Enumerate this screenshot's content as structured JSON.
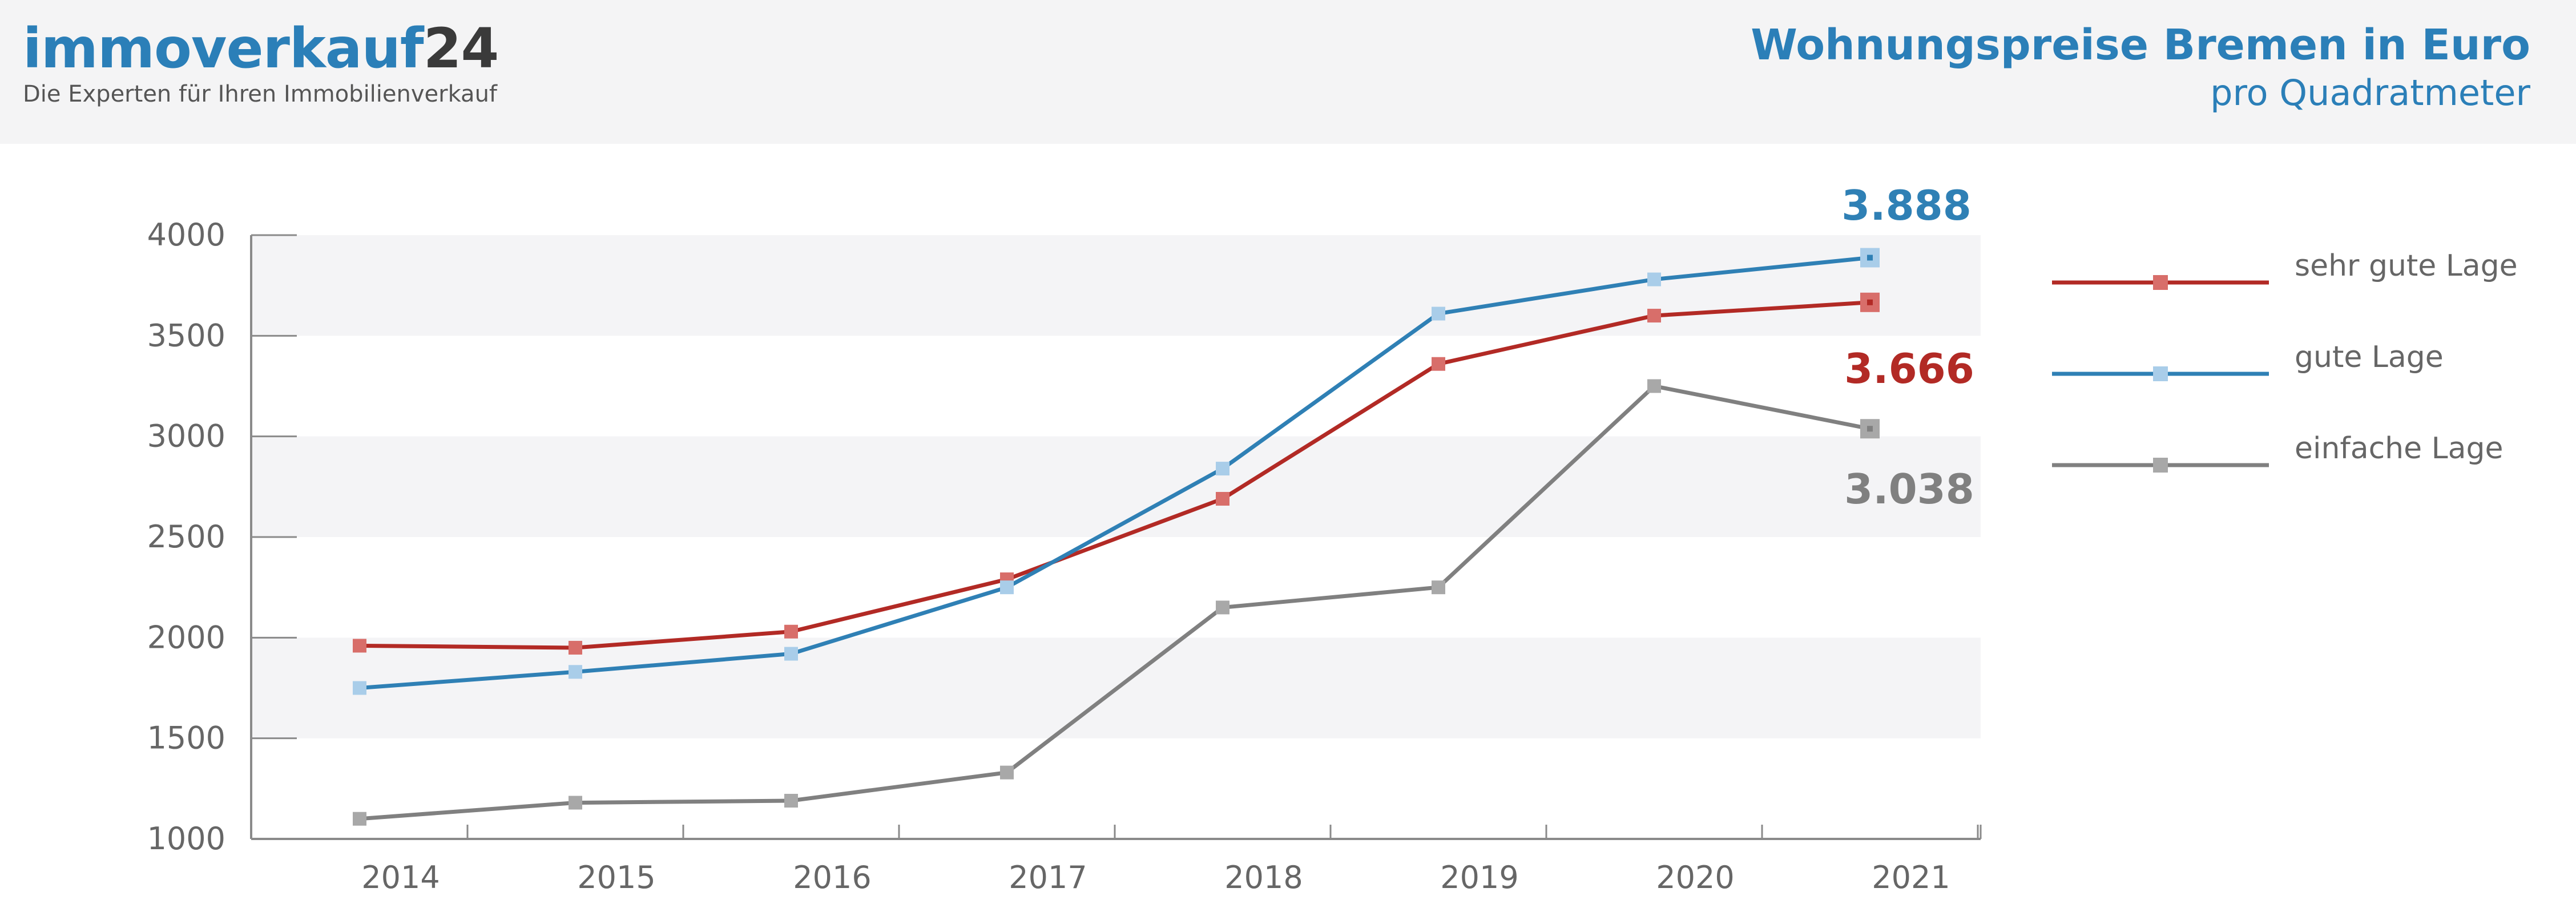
{
  "header": {
    "logo_main": "immoverkauf",
    "logo_number": "24",
    "logo_tagline": "Die Experten für Ihren Immobilienverkauf",
    "title": "Wohnungspreise Bremen in Euro",
    "subtitle": "pro Quadratmeter"
  },
  "colors": {
    "brand_blue": "#2b7fb8",
    "red_line": "#b22a25",
    "red_marker": "#d86e6a",
    "blue_line": "#2f80b5",
    "blue_marker": "#a9cde9",
    "gray_line": "#808080",
    "gray_marker": "#a8a8a8",
    "band": "#f4f4f6"
  },
  "chart_data": {
    "type": "line",
    "title": "Wohnungspreise Bremen in Euro",
    "subtitle": "pro Quadratmeter",
    "categories": [
      "2014",
      "2015",
      "2016",
      "2017",
      "2018",
      "2019",
      "2020",
      "2021"
    ],
    "ylim": [
      1000,
      4000
    ],
    "yticks": [
      4000,
      3500,
      3000,
      2500,
      2000,
      1500,
      1000
    ],
    "grid": "alternating horizontal bands",
    "legend_position": "right",
    "series": [
      {
        "name": "sehr gute Lage",
        "color": "#b22a25",
        "marker": "#d86e6a",
        "values": [
          1960,
          1950,
          2030,
          2290,
          2690,
          3360,
          3600,
          3666
        ],
        "end_label": "3.666"
      },
      {
        "name": "gute Lage",
        "color": "#2f80b5",
        "marker": "#a9cde9",
        "values": [
          1750,
          1830,
          1920,
          2250,
          2840,
          3610,
          3780,
          3888
        ],
        "end_label": "3.888"
      },
      {
        "name": "einfache Lage",
        "color": "#808080",
        "marker": "#a8a8a8",
        "values": [
          1100,
          1180,
          1190,
          1330,
          2150,
          2250,
          3250,
          3038
        ],
        "end_label": "3.038"
      }
    ]
  }
}
